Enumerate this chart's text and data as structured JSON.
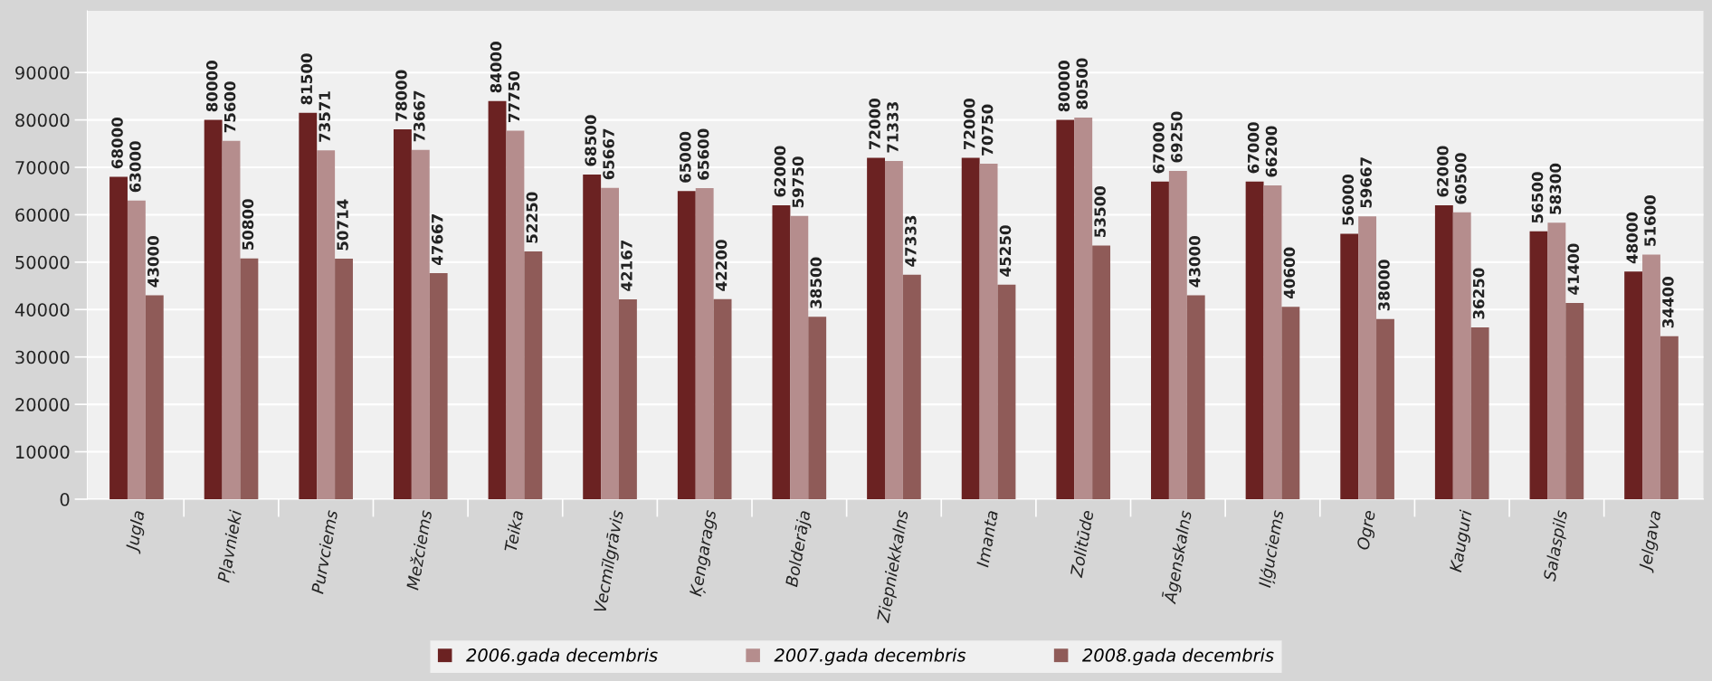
{
  "chart_data": {
    "type": "bar",
    "categories": [
      "Jugla",
      "Pļavnieki",
      "Purvciems",
      "Mežciems",
      "Teika",
      "Vecmīlgrāvis",
      "Ķengarags",
      "Bolderāja",
      "Ziepniekkalns",
      "Imanta",
      "Zolitūde",
      "Āgenskalns",
      "Iļģuciems",
      "Ogre",
      "Kauguri",
      "Salaspils",
      "Jelgava"
    ],
    "series": [
      {
        "name": "2006.gada decembris",
        "color": "#6b2222",
        "values": [
          68000,
          80000,
          81500,
          78000,
          84000,
          68500,
          65000,
          62000,
          72000,
          72000,
          80000,
          67000,
          67000,
          56000,
          62000,
          56500,
          48000
        ]
      },
      {
        "name": "2007.gada decembris",
        "color": "#b58d8d",
        "values": [
          63000,
          75600,
          73571,
          73667,
          77750,
          65667,
          65600,
          59750,
          71333,
          70750,
          80500,
          69250,
          66200,
          59667,
          60500,
          58300,
          51600
        ]
      },
      {
        "name": "2008.gada decembris",
        "color": "#8f5b58",
        "values": [
          43000,
          50800,
          50714,
          47667,
          52250,
          42167,
          42200,
          38500,
          47333,
          45250,
          53500,
          43000,
          40600,
          38000,
          36250,
          41400,
          34400
        ]
      }
    ],
    "ylim": [
      0,
      103000
    ],
    "yticks": [
      0,
      10000,
      20000,
      30000,
      40000,
      50000,
      60000,
      70000,
      80000,
      90000
    ],
    "grid": "y",
    "legend": "bottom",
    "data_labels": true
  }
}
